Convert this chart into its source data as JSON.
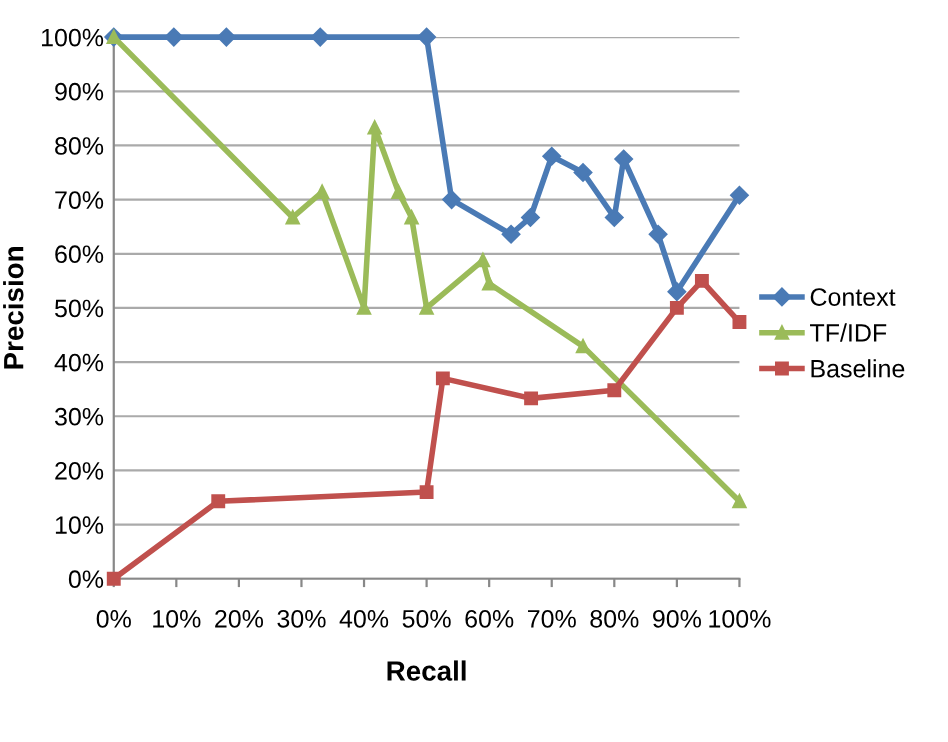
{
  "chart_data": {
    "type": "line",
    "xlabel": "Recall",
    "ylabel": "Precision",
    "xlim": [
      0,
      100
    ],
    "ylim": [
      0,
      100
    ],
    "xticks": [
      {
        "value": 0,
        "label": "0%"
      },
      {
        "value": 10,
        "label": "10%"
      },
      {
        "value": 20,
        "label": "20%"
      },
      {
        "value": 30,
        "label": "30%"
      },
      {
        "value": 40,
        "label": "40%"
      },
      {
        "value": 50,
        "label": "50%"
      },
      {
        "value": 60,
        "label": "60%"
      },
      {
        "value": 70,
        "label": "70%"
      },
      {
        "value": 80,
        "label": "80%"
      },
      {
        "value": 90,
        "label": "90%"
      },
      {
        "value": 100,
        "label": "100%"
      }
    ],
    "yticks": [
      {
        "value": 0,
        "label": "0%"
      },
      {
        "value": 10,
        "label": "10%"
      },
      {
        "value": 20,
        "label": "20%"
      },
      {
        "value": 30,
        "label": "30%"
      },
      {
        "value": 40,
        "label": "40%"
      },
      {
        "value": 50,
        "label": "50%"
      },
      {
        "value": 60,
        "label": "60%"
      },
      {
        "value": 70,
        "label": "70%"
      },
      {
        "value": 80,
        "label": "80%"
      },
      {
        "value": 90,
        "label": "90%"
      },
      {
        "value": 100,
        "label": "100%"
      }
    ],
    "grid": "y",
    "legend": "right",
    "line_style": "solid",
    "series": [
      {
        "name": "Context",
        "color": "#4a7ab5",
        "marker": "diamond",
        "x": [
          0,
          9.6,
          18,
          33,
          50,
          54,
          63.5,
          66.6,
          70,
          75,
          80,
          81.5,
          87,
          90,
          100
        ],
        "values": [
          100,
          100,
          100,
          100,
          100,
          70,
          63.6,
          66.7,
          78,
          75,
          66.7,
          77.5,
          63.6,
          53,
          70.8
        ]
      },
      {
        "name": "TF/IDF",
        "color": "#9bbb59",
        "marker": "triangle",
        "x": [
          0,
          28.6,
          33.3,
          40,
          41.7,
          45.5,
          47.6,
          50,
          59,
          60,
          75,
          100
        ],
        "values": [
          100,
          66.7,
          71.4,
          50,
          83.3,
          71.4,
          66.7,
          50,
          58.8,
          54.5,
          42.9,
          14.3
        ]
      },
      {
        "name": "Baseline",
        "color": "#c0504d",
        "marker": "square",
        "x": [
          0,
          16.7,
          50,
          52.6,
          66.7,
          80,
          90,
          94,
          100
        ],
        "values": [
          0,
          14.3,
          16,
          37,
          33.3,
          34.8,
          50,
          55,
          47.4
        ]
      }
    ]
  }
}
